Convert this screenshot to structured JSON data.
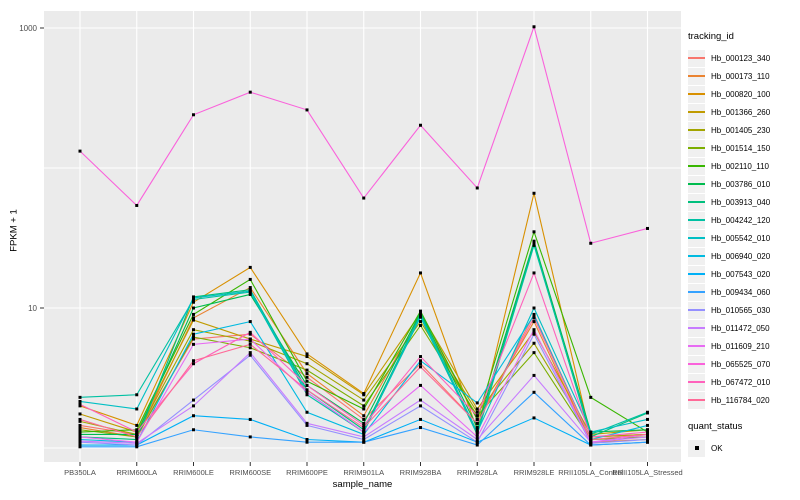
{
  "figure": {
    "bg": "#FFFFFF",
    "panel_bg": "#EBEBEB",
    "grid_color": "#FFFFFF",
    "tick_color": "#333333",
    "tick_text_color": "#4D4D4D",
    "point_color": "#000000"
  },
  "axes": {
    "y_title": "FPKM + 1",
    "x_title": "sample_name",
    "y_scale": "log10",
    "y_tick_labels": [
      {
        "label": "1000",
        "value": 1000
      },
      {
        "label": "10",
        "value": 10
      }
    ],
    "y_gridline_values": [
      1,
      10,
      100,
      1000
    ]
  },
  "legend": {
    "title": "tracking_id"
  },
  "legend2": {
    "title": "quant_status",
    "items": [
      {
        "label": "OK"
      }
    ]
  },
  "chart_data": {
    "type": "line",
    "title": "",
    "xlabel": "sample_name",
    "ylabel": "FPKM + 1",
    "y_scale": "log10",
    "ylim": [
      0.8,
      1300
    ],
    "grid": true,
    "legend_position": "right",
    "point_shape": "square",
    "point_status": "OK",
    "categories": [
      "PB350LA",
      "RRIM600LA",
      "RRIM600LE",
      "RRIM600SE",
      "RRIM600PE",
      "RRIM901LA",
      "RRIM928BA",
      "RRIM928LA",
      "RRIM928LE",
      "RRII105LA_Control",
      "RRII105LA_Stressed"
    ],
    "series": [
      {
        "name": "Hb_000123_340",
        "color": "#F8766D",
        "values": [
          1.45,
          1.25,
          6.0,
          6.5,
          3.2,
          1.6,
          4.0,
          1.5,
          9.0,
          1.15,
          1.2
        ]
      },
      {
        "name": "Hb_000173_110",
        "color": "#EA8331",
        "values": [
          1.4,
          1.2,
          8.5,
          14.0,
          3.4,
          1.7,
          9.0,
          1.6,
          8.0,
          1.1,
          1.15
        ]
      },
      {
        "name": "Hb_000820_100",
        "color": "#D89000",
        "values": [
          2.0,
          1.45,
          11.0,
          19.5,
          4.7,
          2.45,
          17.8,
          1.35,
          66.0,
          1.2,
          1.25
        ]
      },
      {
        "name": "Hb_001366_260",
        "color": "#C09B00",
        "values": [
          1.75,
          1.3,
          8.2,
          6.0,
          4.5,
          2.4,
          9.2,
          1.9,
          6.8,
          1.25,
          1.35
        ]
      },
      {
        "name": "Hb_001405_230",
        "color": "#A3A500",
        "values": [
          1.55,
          1.25,
          7.0,
          5.8,
          4.0,
          2.2,
          8.0,
          1.8,
          5.6,
          1.2,
          1.25
        ]
      },
      {
        "name": "Hb_001514_150",
        "color": "#7CAE00",
        "values": [
          1.35,
          1.2,
          6.2,
          5.2,
          3.6,
          2.0,
          7.5,
          1.7,
          4.8,
          1.15,
          1.2
        ]
      },
      {
        "name": "Hb_002110_110",
        "color": "#39B600",
        "values": [
          1.3,
          1.35,
          9.0,
          16.0,
          3.0,
          1.9,
          9.5,
          1.6,
          35.0,
          2.3,
          1.3
        ]
      },
      {
        "name": "Hb_003786_010",
        "color": "#00BB4E",
        "values": [
          1.25,
          1.25,
          10.0,
          12.5,
          2.8,
          1.5,
          9.3,
          1.4,
          30.0,
          1.3,
          1.35
        ]
      },
      {
        "name": "Hb_003913_040",
        "color": "#00BF7D",
        "values": [
          1.2,
          1.15,
          12.0,
          13.5,
          2.6,
          1.35,
          9.0,
          1.3,
          29.0,
          1.2,
          1.78
        ]
      },
      {
        "name": "Hb_004242_120",
        "color": "#00C1A3",
        "values": [
          2.3,
          2.4,
          11.5,
          13.0,
          2.4,
          1.3,
          8.6,
          1.25,
          28.0,
          1.25,
          1.8
        ]
      },
      {
        "name": "Hb_005542_010",
        "color": "#00BFC4",
        "values": [
          2.15,
          1.9,
          11.8,
          13.2,
          2.5,
          1.3,
          8.8,
          1.3,
          10.0,
          1.3,
          1.6
        ]
      },
      {
        "name": "Hb_006940_020",
        "color": "#00BAE0",
        "values": [
          1.15,
          1.1,
          6.5,
          8.0,
          1.8,
          1.25,
          4.2,
          2.1,
          8.9,
          1.15,
          1.45
        ]
      },
      {
        "name": "Hb_007543_020",
        "color": "#00B0F6",
        "values": [
          1.05,
          1.05,
          1.7,
          1.6,
          1.15,
          1.1,
          1.6,
          1.1,
          1.64,
          1.05,
          1.1
        ]
      },
      {
        "name": "Hb_009434_060",
        "color": "#35A2FF",
        "values": [
          1.02,
          1.02,
          1.35,
          1.2,
          1.1,
          1.1,
          1.4,
          1.05,
          2.5,
          1.05,
          1.1
        ]
      },
      {
        "name": "Hb_010565_030",
        "color": "#9590FF",
        "values": [
          1.1,
          1.05,
          2.2,
          4.6,
          1.45,
          1.15,
          2.0,
          1.1,
          6.5,
          1.08,
          1.15
        ]
      },
      {
        "name": "Hb_011472_050",
        "color": "#C77CFF",
        "values": [
          1.12,
          1.08,
          2.0,
          4.8,
          1.5,
          1.2,
          2.2,
          1.15,
          3.3,
          1.1,
          1.2
        ]
      },
      {
        "name": "Hb_011609_210",
        "color": "#E76BF3",
        "values": [
          1.2,
          1.1,
          5.5,
          6.0,
          2.5,
          1.3,
          2.8,
          1.2,
          7.0,
          1.1,
          1.25
        ]
      },
      {
        "name": "Hb_065525_070",
        "color": "#FA62DB",
        "values": [
          132,
          54,
          240,
          348,
          260,
          61,
          202,
          72,
          1020,
          29,
          37
        ]
      },
      {
        "name": "Hb_067472_010",
        "color": "#FF62BC",
        "values": [
          2.05,
          1.3,
          4.0,
          6.7,
          2.8,
          1.45,
          4.5,
          1.7,
          17.8,
          1.2,
          1.3
        ]
      },
      {
        "name": "Hb_116784_020",
        "color": "#FF6A98",
        "values": [
          1.6,
          1.2,
          4.2,
          5.5,
          2.6,
          1.4,
          3.8,
          1.5,
          8.5,
          1.15,
          1.25
        ]
      }
    ]
  }
}
